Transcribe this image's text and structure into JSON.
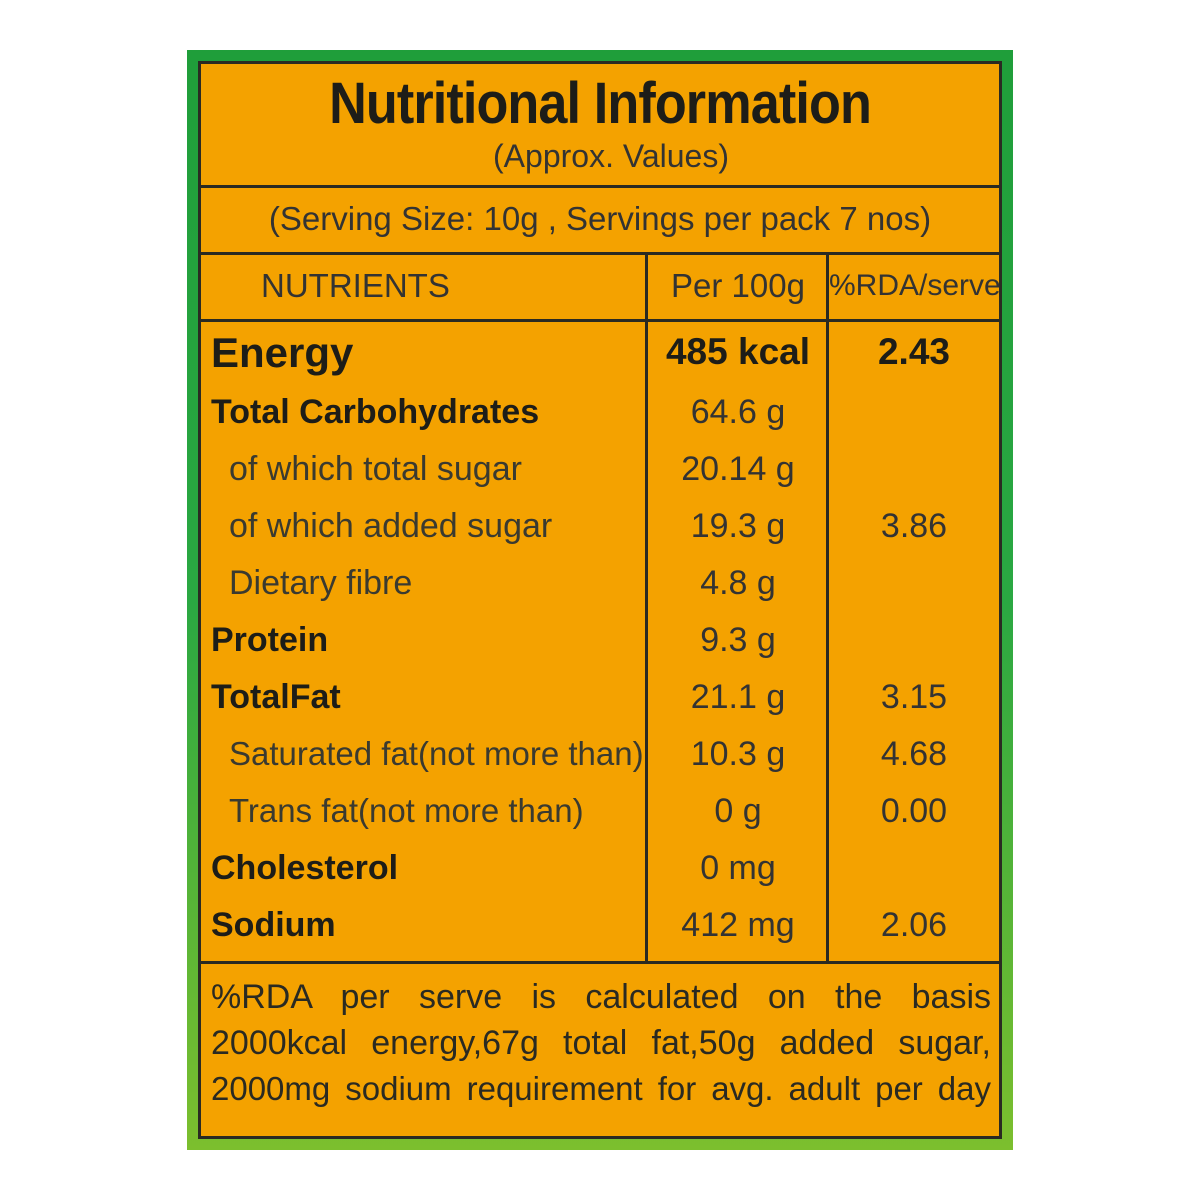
{
  "header": {
    "title": "Nutritional Information",
    "subtitle": "(Approx. Values)"
  },
  "serving": {
    "text": "(Serving Size: 10g , Servings per pack 7 nos)"
  },
  "table": {
    "columns": {
      "nutrients": "NUTRIENTS",
      "per100g": "Per 100g",
      "rda": "%RDA/serve"
    },
    "rows": [
      {
        "name": "Energy",
        "value": "485 kcal",
        "rda": "2.43"
      },
      {
        "name": "Total Carbohydrates",
        "value": "64.6 g",
        "rda": ""
      },
      {
        "name": "of which total sugar",
        "value": "20.14 g",
        "rda": ""
      },
      {
        "name": "of which added sugar",
        "value": "19.3 g",
        "rda": "3.86"
      },
      {
        "name": "Dietary fibre",
        "value": "4.8 g",
        "rda": ""
      },
      {
        "name": "Protein",
        "value": "9.3 g",
        "rda": ""
      },
      {
        "name": "TotalFat",
        "value": "21.1 g",
        "rda": "3.15"
      },
      {
        "name": "Saturated fat(not more than)",
        "value": "10.3 g",
        "rda": "4.68"
      },
      {
        "name": "Trans fat(not more than)",
        "value": "0 g",
        "rda": "0.00"
      },
      {
        "name": "Cholesterol",
        "value": "0 mg",
        "rda": ""
      },
      {
        "name": "Sodium",
        "value": "412 mg",
        "rda": "2.06"
      }
    ]
  },
  "footnote": {
    "line1": "%RDA per serve is calculated on the basis",
    "line2": "2000kcal energy,67g total fat,50g added sugar,",
    "line3": "2000mg sodium requirement for avg. adult per day"
  },
  "colors": {
    "panel": "#f4a200",
    "border": "#2a2a22",
    "frame": "#2aa842"
  }
}
